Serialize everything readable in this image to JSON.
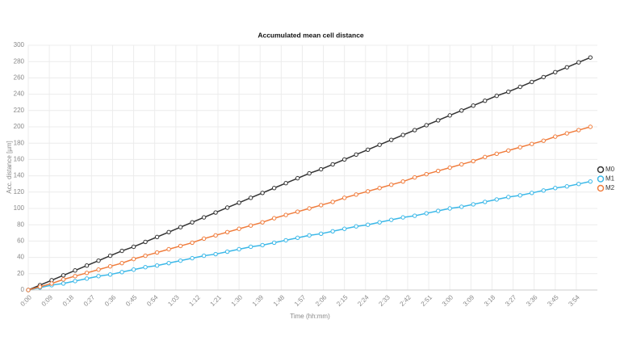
{
  "chart_data": {
    "type": "line",
    "title": "Accumulated mean cell distance",
    "xlabel": "Time (hh:mm)",
    "ylabel": "Acc. distance [µm]",
    "x": [
      0,
      5,
      10,
      15,
      20,
      25,
      30,
      35,
      40,
      45,
      50,
      55,
      60,
      65,
      70,
      75,
      80,
      85,
      90,
      95,
      100,
      105,
      110,
      115,
      120,
      125,
      130,
      135,
      140,
      145,
      150,
      155,
      160,
      165,
      170,
      175,
      180,
      185,
      190,
      195,
      200,
      205,
      210,
      215,
      220,
      225,
      230,
      235,
      240
    ],
    "series": [
      {
        "name": "M0",
        "color": "#333333",
        "values": [
          0,
          6,
          12,
          18,
          24,
          30,
          36,
          42,
          48,
          53,
          59,
          65,
          71,
          77,
          83,
          89,
          95,
          101,
          107,
          113,
          119,
          125,
          131,
          137,
          143,
          148,
          154,
          160,
          166,
          172,
          178,
          184,
          190,
          196,
          202,
          208,
          214,
          220,
          226,
          232,
          238,
          243,
          249,
          255,
          261,
          267,
          273,
          279,
          285
        ]
      },
      {
        "name": "M1",
        "color": "#3bb8e8",
        "values": [
          0,
          3,
          6,
          8,
          11,
          14,
          17,
          19,
          22,
          25,
          28,
          30,
          33,
          36,
          39,
          42,
          44,
          47,
          50,
          53,
          55,
          58,
          61,
          64,
          67,
          69,
          72,
          75,
          78,
          80,
          83,
          86,
          89,
          91,
          94,
          97,
          100,
          102,
          105,
          108,
          111,
          114,
          116,
          119,
          122,
          125,
          127,
          130,
          133
        ]
      },
      {
        "name": "M2",
        "color": "#f07c3c",
        "values": [
          0,
          4,
          8,
          13,
          17,
          21,
          25,
          29,
          33,
          38,
          42,
          46,
          50,
          54,
          58,
          63,
          67,
          71,
          75,
          79,
          83,
          88,
          92,
          96,
          100,
          104,
          108,
          113,
          117,
          121,
          125,
          129,
          133,
          138,
          142,
          146,
          150,
          154,
          158,
          163,
          167,
          171,
          175,
          179,
          183,
          188,
          192,
          196,
          200
        ]
      }
    ],
    "xlim": [
      0,
      243
    ],
    "xticks": [
      {
        "value": 0,
        "label": "0:00"
      },
      {
        "value": 9,
        "label": "0:09"
      },
      {
        "value": 18,
        "label": "0:18"
      },
      {
        "value": 27,
        "label": "0:27"
      },
      {
        "value": 36,
        "label": "0:36"
      },
      {
        "value": 45,
        "label": "0:45"
      },
      {
        "value": 54,
        "label": "0:54"
      },
      {
        "value": 63,
        "label": "1:03"
      },
      {
        "value": 72,
        "label": "1:12"
      },
      {
        "value": 81,
        "label": "1:21"
      },
      {
        "value": 90,
        "label": "1:30"
      },
      {
        "value": 99,
        "label": "1:39"
      },
      {
        "value": 108,
        "label": "1:48"
      },
      {
        "value": 117,
        "label": "1:57"
      },
      {
        "value": 126,
        "label": "2:06"
      },
      {
        "value": 135,
        "label": "2:15"
      },
      {
        "value": 144,
        "label": "2:24"
      },
      {
        "value": 153,
        "label": "2:33"
      },
      {
        "value": 162,
        "label": "2:42"
      },
      {
        "value": 171,
        "label": "2:51"
      },
      {
        "value": 180,
        "label": "3:00"
      },
      {
        "value": 189,
        "label": "3:09"
      },
      {
        "value": 198,
        "label": "3:18"
      },
      {
        "value": 207,
        "label": "3:27"
      },
      {
        "value": 216,
        "label": "3:36"
      },
      {
        "value": 225,
        "label": "3:45"
      },
      {
        "value": 234,
        "label": "3:54"
      }
    ],
    "ylim": [
      0,
      300
    ],
    "yticks": [
      0,
      20,
      40,
      60,
      80,
      100,
      120,
      140,
      160,
      180,
      200,
      220,
      240,
      260,
      280,
      300
    ],
    "grid": true,
    "legend": "right"
  }
}
